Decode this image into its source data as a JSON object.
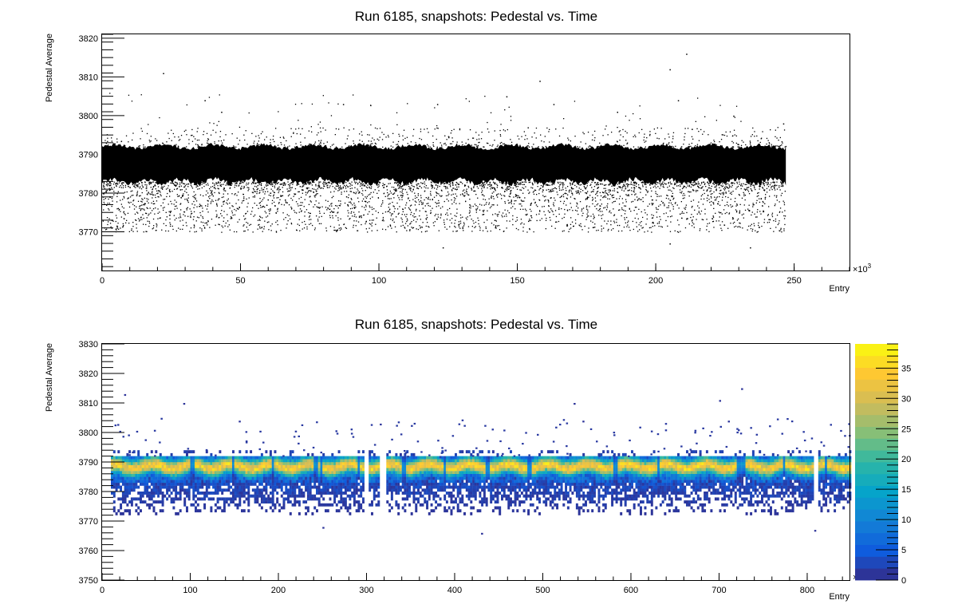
{
  "chart_data": [
    {
      "type": "scatter",
      "title": "Run 6185, snapshots: Pedestal vs. Time",
      "xlabel": "Entry",
      "ylabel": "Pedestal Average",
      "x_exponent_label": "×10",
      "x_exponent_power": "3",
      "xlim": [
        0,
        270
      ],
      "ylim": [
        3760,
        3821
      ],
      "x_ticks": [
        "0",
        "50",
        "100",
        "150",
        "200",
        "250"
      ],
      "x_tick_values": [
        0,
        50,
        100,
        150,
        200,
        250
      ],
      "y_ticks": [
        "3770",
        "3780",
        "3790",
        "3800",
        "3810",
        "3820"
      ],
      "y_tick_values": [
        3770,
        3780,
        3790,
        3800,
        3810,
        3820
      ],
      "marker_color": "#000000",
      "data_summary": {
        "x_extent": [
          0,
          247
        ],
        "dense_band": [
          3783,
          3792
        ],
        "sparse_tail": [
          3770,
          3783
        ]
      },
      "outliers": [
        {
          "x": 22,
          "y": 3811
        },
        {
          "x": 37,
          "y": 3804
        },
        {
          "x": 43,
          "y": 3801
        },
        {
          "x": 87,
          "y": 3803
        },
        {
          "x": 121,
          "y": 3803
        },
        {
          "x": 146,
          "y": 3805
        },
        {
          "x": 158,
          "y": 3809
        },
        {
          "x": 163,
          "y": 3803
        },
        {
          "x": 205,
          "y": 3812
        },
        {
          "x": 211,
          "y": 3816
        },
        {
          "x": 208,
          "y": 3804
        },
        {
          "x": 186,
          "y": 3801
        },
        {
          "x": 123,
          "y": 3766
        },
        {
          "x": 205,
          "y": 3767
        },
        {
          "x": 234,
          "y": 3766
        },
        {
          "x": 228,
          "y": 3800
        },
        {
          "x": 246,
          "y": 3798
        }
      ]
    },
    {
      "type": "heatmap",
      "title": "Run 6185, snapshots: Pedestal vs. Time",
      "xlabel": "Entry",
      "ylabel": "Pedestal Average",
      "x_exponent_label": "×10",
      "x_exponent_power": "3",
      "xlim": [
        0,
        848
      ],
      "ylim": [
        3750,
        3830
      ],
      "x_ticks": [
        "0",
        "100",
        "200",
        "300",
        "400",
        "500",
        "600",
        "700",
        "800"
      ],
      "x_tick_values": [
        0,
        100,
        200,
        300,
        400,
        500,
        600,
        700,
        800
      ],
      "y_ticks": [
        "3750",
        "3760",
        "3770",
        "3780",
        "3790",
        "3800",
        "3810",
        "3820",
        "3830"
      ],
      "y_tick_values": [
        3750,
        3760,
        3770,
        3780,
        3790,
        3800,
        3810,
        3820,
        3830
      ],
      "colorbar": {
        "range": [
          0,
          39
        ],
        "ticks": [
          "0",
          "5",
          "10",
          "15",
          "20",
          "25",
          "30",
          "35"
        ],
        "tick_values": [
          0,
          5,
          10,
          15,
          20,
          25,
          30,
          35
        ],
        "palette": [
          "#352a87",
          "#0f5cdd",
          "#1481d6",
          "#06a4ca",
          "#2eb7a4",
          "#87bf77",
          "#d1bb59",
          "#fec832",
          "#f9fb0e"
        ]
      },
      "data_summary": {
        "x_extent": [
          10,
          848
        ],
        "dense_band": [
          3783,
          3792
        ],
        "sparse_tail": [
          3772,
          3783
        ],
        "gaps": [
          [
            296,
            302
          ],
          [
            313,
            320
          ],
          [
            806,
            812
          ]
        ]
      },
      "outliers": [
        {
          "x": 25,
          "y": 3813
        },
        {
          "x": 92,
          "y": 3810
        },
        {
          "x": 155,
          "y": 3804
        },
        {
          "x": 315,
          "y": 3803
        },
        {
          "x": 430,
          "y": 3766
        },
        {
          "x": 535,
          "y": 3810
        },
        {
          "x": 545,
          "y": 3804
        },
        {
          "x": 700,
          "y": 3811
        },
        {
          "x": 725,
          "y": 3815
        },
        {
          "x": 710,
          "y": 3804
        },
        {
          "x": 808,
          "y": 3767
        },
        {
          "x": 250,
          "y": 3768
        }
      ]
    }
  ]
}
